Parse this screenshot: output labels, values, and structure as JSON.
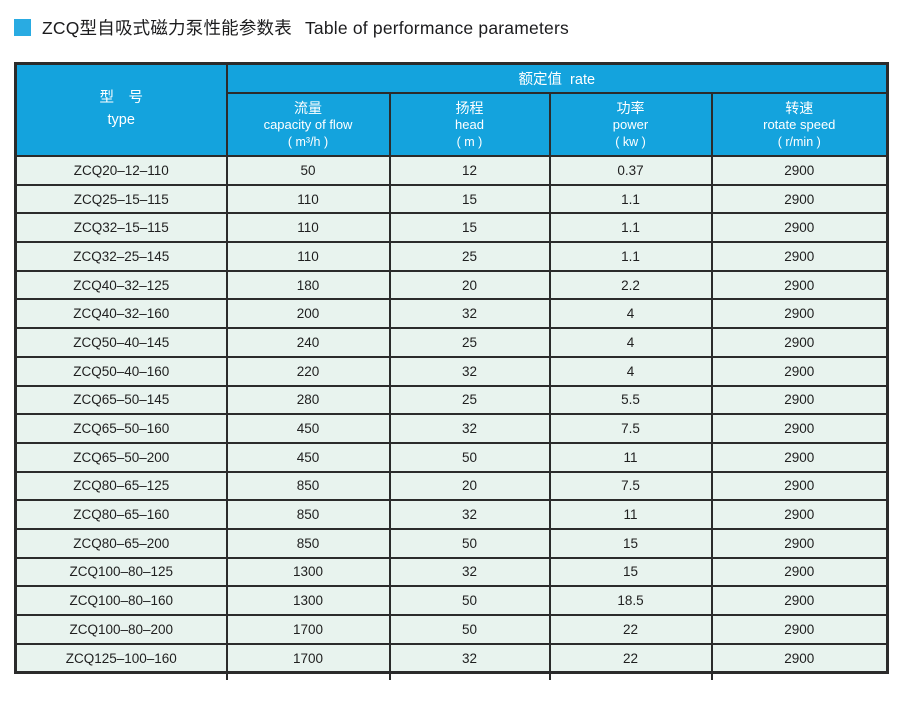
{
  "theme": {
    "accent": "#29ABE2",
    "header_bg": "#14A3DD",
    "row_bg": "#E8F3EE",
    "border": "#2B2B2B"
  },
  "title": {
    "zh": "ZCQ型自吸式磁力泵性能参数表",
    "en": "Table of performance parameters"
  },
  "table": {
    "type_header": {
      "zh": "型　号",
      "en": "type"
    },
    "rate_group_label": "额定值  rate",
    "columns": [
      {
        "zh": "流量",
        "en": "capacity of flow",
        "unit": "( m³/h )"
      },
      {
        "zh": "扬程",
        "en": "head",
        "unit": "( m )"
      },
      {
        "zh": "功率",
        "en": "power",
        "unit": "( kw )"
      },
      {
        "zh": "转速",
        "en": "rotate speed",
        "unit": "( r/min )"
      }
    ],
    "rows": [
      [
        "ZCQ20–12–110",
        "50",
        "12",
        "0.37",
        "2900"
      ],
      [
        "ZCQ25–15–115",
        "110",
        "15",
        "1.1",
        "2900"
      ],
      [
        "ZCQ32–15–115",
        "110",
        "15",
        "1.1",
        "2900"
      ],
      [
        "ZCQ32–25–145",
        "110",
        "25",
        "1.1",
        "2900"
      ],
      [
        "ZCQ40–32–125",
        "180",
        "20",
        "2.2",
        "2900"
      ],
      [
        "ZCQ40–32–160",
        "200",
        "32",
        "4",
        "2900"
      ],
      [
        "ZCQ50–40–145",
        "240",
        "25",
        "4",
        "2900"
      ],
      [
        "ZCQ50–40–160",
        "220",
        "32",
        "4",
        "2900"
      ],
      [
        "ZCQ65–50–145",
        "280",
        "25",
        "5.5",
        "2900"
      ],
      [
        "ZCQ65–50–160",
        "450",
        "32",
        "7.5",
        "2900"
      ],
      [
        "ZCQ65–50–200",
        "450",
        "50",
        "11",
        "2900"
      ],
      [
        "ZCQ80–65–125",
        "850",
        "20",
        "7.5",
        "2900"
      ],
      [
        "ZCQ80–65–160",
        "850",
        "32",
        "11",
        "2900"
      ],
      [
        "ZCQ80–65–200",
        "850",
        "50",
        "15",
        "2900"
      ],
      [
        "ZCQ100–80–125",
        "1300",
        "32",
        "15",
        "2900"
      ],
      [
        "ZCQ100–80–160",
        "1300",
        "50",
        "18.5",
        "2900"
      ],
      [
        "ZCQ100–80–200",
        "1700",
        "50",
        "22",
        "2900"
      ],
      [
        "ZCQ125–100–160",
        "1700",
        "32",
        "22",
        "2900"
      ]
    ]
  }
}
